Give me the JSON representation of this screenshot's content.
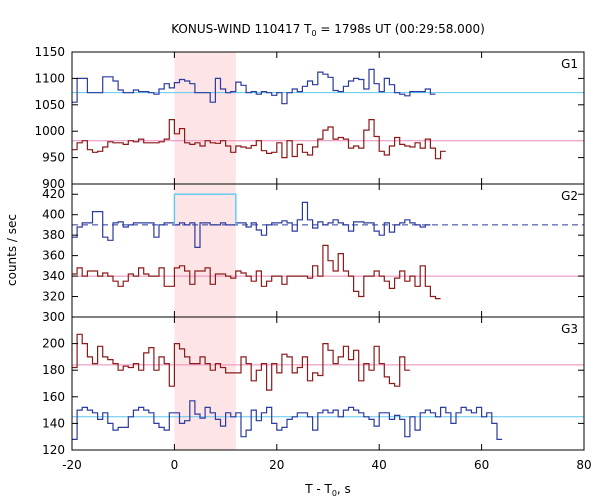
{
  "chart_data": {
    "type": "line",
    "title": "KONUS-WIND 110417 T",
    "title_sub": "0",
    "title_rest": " = 1798s UT (00:29:58.000)",
    "xlabel": "T - T",
    "xlabel_sub": "0",
    "xlabel_rest": ", s",
    "ylabel": "counts / sec",
    "xlim": [
      -20,
      80
    ],
    "xticks": [
      -20,
      0,
      20,
      40,
      60,
      80
    ],
    "highlight": {
      "x0": 0,
      "x1": 12,
      "color": "#fde4e6"
    },
    "grid": false,
    "panels": [
      {
        "name": "G1",
        "ylim": [
          900,
          1150
        ],
        "yticks": [
          900,
          950,
          1000,
          1050,
          1100,
          1150
        ],
        "series": [
          {
            "color": "#2b3b9e",
            "values": [
              1055,
              1100,
              1100,
              1073,
              1073,
              1073,
              1103,
              1103,
              1095,
              1078,
              1073,
              1073,
              1078,
              1075,
              1075,
              1073,
              1070,
              1080,
              1090,
              1082,
              1092,
              1098,
              1095,
              1090,
              1073,
              1073,
              1073,
              1055,
              1100,
              1080,
              1073,
              1075,
              1093,
              1087,
              1073,
              1075,
              1070,
              1075,
              1073,
              1068,
              1073,
              1052,
              1073,
              1080,
              1075,
              1085,
              1095,
              1088,
              1112,
              1108,
              1102,
              1077,
              1075,
              1085,
              1095,
              1100,
              1098,
              1080,
              1117,
              1090,
              1075,
              1100,
              1088,
              1073,
              1070,
              1067,
              1075,
              1075,
              1075,
              1080,
              1070
            ],
            "baseline": 1073,
            "baseline_color": "#5ec8ef"
          },
          {
            "color": "#8b1a1a",
            "values": [
              965,
              978,
              982,
              965,
              960,
              962,
              970,
              980,
              978,
              978,
              975,
              982,
              980,
              985,
              978,
              978,
              978,
              980,
              985,
              1022,
              995,
              1005,
              978,
              975,
              978,
              972,
              982,
              978,
              977,
              982,
              972,
              960,
              972,
              970,
              968,
              973,
              982,
              963,
              958,
              960,
              978,
              950,
              982,
              952,
              975,
              960,
              955,
              970,
              985,
              1002,
              1008,
              985,
              988,
              985,
              968,
              972,
              968,
              1002,
              1022,
              990,
              962,
              955,
              972,
              988,
              975,
              972,
              970,
              978,
              968,
              985,
              968,
              948,
              962
            ],
            "baseline": 982,
            "baseline_color": "#e88ab8"
          }
        ]
      },
      {
        "name": "G2",
        "ylim": [
          300,
          430
        ],
        "yticks": [
          300,
          320,
          340,
          360,
          380,
          400,
          420
        ],
        "series": [
          {
            "color": "#2b3b9e",
            "values": [
              378,
              388,
              392,
              392,
              403,
              403,
              378,
              375,
              392,
              393,
              388,
              390,
              392,
              392,
              392,
              392,
              378,
              390,
              392,
              392,
              390,
              392,
              390,
              392,
              368,
              392,
              392,
              390,
              390,
              392,
              390,
              390,
              392,
              392,
              388,
              392,
              385,
              380,
              390,
              392,
              392,
              394,
              392,
              384,
              395,
              412,
              395,
              387,
              393,
              390,
              392,
              395,
              392,
              390,
              384,
              393,
              393,
              392,
              392,
              384,
              380,
              392,
              383,
              390,
              392,
              395,
              392,
              390,
              388,
              390
            ],
            "baseline": 390,
            "baseline_color": "#2b3b9e",
            "highlight_level": 420,
            "highlight_color": "#5ec8ef",
            "dashed_after": 12
          },
          {
            "color": "#8b1a1a",
            "values": [
              342,
              348,
              340,
              345,
              345,
              340,
              343,
              340,
              335,
              330,
              335,
              342,
              340,
              348,
              342,
              340,
              340,
              348,
              330,
              330,
              348,
              350,
              345,
              332,
              345,
              345,
              348,
              332,
              342,
              342,
              340,
              338,
              345,
              343,
              340,
              335,
              345,
              330,
              335,
              340,
              340,
              332,
              340,
              340,
              340,
              340,
              338,
              350,
              340,
              370,
              355,
              345,
              362,
              345,
              340,
              325,
              320,
              340,
              340,
              345,
              340,
              335,
              328,
              338,
              345,
              335,
              340,
              330,
              350,
              330,
              320,
              318
            ],
            "baseline": 340,
            "baseline_color": "#e88ab8"
          }
        ]
      },
      {
        "name": "G3",
        "ylim": [
          120,
          220
        ],
        "yticks": [
          120,
          140,
          160,
          180,
          200
        ],
        "series": [
          {
            "color": "#2b3b9e",
            "values": [
              128,
              150,
              152,
              150,
              148,
              143,
              148,
              140,
              135,
              137,
              137,
              145,
              150,
              152,
              150,
              148,
              140,
              137,
              135,
              148,
              148,
              140,
              142,
              157,
              147,
              144,
              152,
              148,
              143,
              138,
              148,
              145,
              148,
              130,
              135,
              150,
              142,
              148,
              152,
              140,
              135,
              137,
              143,
              145,
              148,
              148,
              145,
              135,
              148,
              150,
              148,
              150,
              145,
              150,
              152,
              150,
              148,
              145,
              143,
              138,
              148,
              148,
              143,
              146,
              143,
              130,
              145,
              135,
              148,
              150,
              148,
              145,
              152,
              148,
              140,
              148,
              152,
              150,
              148,
              152,
              145,
              148,
              140,
              128
            ],
            "baseline": 145,
            "baseline_color": "#5ec8ef"
          },
          {
            "color": "#8b1a1a",
            "values": [
              182,
              207,
              200,
              190,
              185,
              198,
              190,
              188,
              185,
              180,
              183,
              182,
              185,
              180,
              193,
              197,
              180,
              190,
              185,
              168,
              200,
              196,
              190,
              185,
              185,
              190,
              185,
              180,
              185,
              182,
              178,
              178,
              178,
              190,
              185,
              172,
              180,
              185,
              165,
              185,
              178,
              192,
              190,
              178,
              182,
              190,
              172,
              178,
              176,
              200,
              195,
              185,
              190,
              198,
              188,
              195,
              172,
              185,
              180,
              198,
              185,
              175,
              170,
              168,
              190,
              180
            ],
            "baseline": 184,
            "baseline_color": "#e88ab8"
          }
        ]
      }
    ]
  }
}
